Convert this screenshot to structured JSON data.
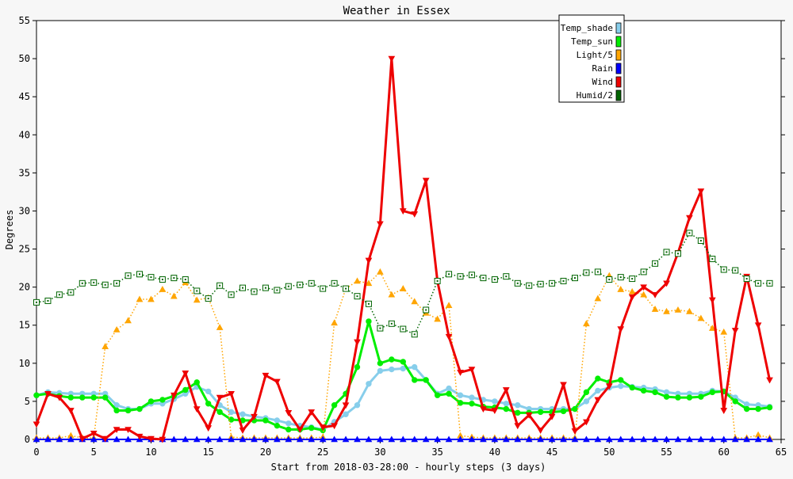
{
  "chart_data": {
    "type": "line",
    "title": "Weather in Essex",
    "xlabel": "Start from 2018-03-28:00 - hourly steps (3 days)",
    "ylabel": "Degrees",
    "xlim": [
      0,
      65
    ],
    "ylim": [
      0,
      55
    ],
    "xticks": [
      0,
      5,
      10,
      15,
      20,
      25,
      30,
      35,
      40,
      45,
      50,
      55,
      60,
      65
    ],
    "yticks": [
      0,
      5,
      10,
      15,
      20,
      25,
      30,
      35,
      40,
      45,
      50,
      55
    ],
    "legend_position": "top-right",
    "grid": false,
    "series": [
      {
        "name": "Temp_shade",
        "color": "#87ceeb",
        "marker": "circle",
        "line": "solid",
        "values": [
          5.8,
          6.2,
          6.1,
          6.0,
          6.0,
          6.0,
          6.0,
          4.5,
          4.0,
          4.0,
          4.7,
          4.7,
          5.3,
          6.0,
          6.9,
          6.3,
          4.5,
          3.6,
          3.3,
          3.0,
          2.8,
          2.5,
          2.1,
          1.8,
          1.6,
          1.3,
          2.3,
          3.3,
          4.5,
          7.3,
          9.0,
          9.2,
          9.3,
          9.5,
          7.8,
          6.0,
          6.7,
          5.8,
          5.5,
          5.2,
          5.0,
          4.7,
          4.5,
          4.0,
          4.0,
          4.0,
          4.0,
          4.0,
          5.0,
          6.4,
          6.8,
          7.0,
          6.9,
          6.8,
          6.6,
          6.2,
          6.0,
          6.0,
          6.0,
          6.4,
          6.3,
          5.5,
          4.6,
          4.5,
          4.3
        ]
      },
      {
        "name": "Temp_sun",
        "color": "#00ee00",
        "marker": "circle",
        "line": "solid",
        "values": [
          5.8,
          6.0,
          5.7,
          5.5,
          5.5,
          5.5,
          5.5,
          3.8,
          3.8,
          4.0,
          5.0,
          5.2,
          5.7,
          6.5,
          7.5,
          4.7,
          3.6,
          2.6,
          2.5,
          2.5,
          2.5,
          1.8,
          1.3,
          1.3,
          1.5,
          1.2,
          4.5,
          6.0,
          9.5,
          15.5,
          10.0,
          10.5,
          10.2,
          7.8,
          7.8,
          5.8,
          6.0,
          4.8,
          4.7,
          4.3,
          4.2,
          4.0,
          3.5,
          3.5,
          3.6,
          3.6,
          3.7,
          4.0,
          6.2,
          8.0,
          7.5,
          7.8,
          6.8,
          6.4,
          6.2,
          5.6,
          5.5,
          5.5,
          5.6,
          6.2,
          6.3,
          5.0,
          4.0,
          4.0,
          4.2
        ]
      },
      {
        "name": "Light/5",
        "color": "#ffa500",
        "marker": "triangle-up",
        "line": "dotted",
        "values": [
          0.2,
          0.2,
          0.2,
          0.5,
          0.2,
          0.2,
          12.2,
          14.4,
          15.6,
          18.4,
          18.4,
          19.7,
          18.8,
          20.6,
          18.3,
          18.6,
          14.7,
          0.3,
          0.2,
          0.2,
          0.2,
          0.2,
          0.2,
          0.2,
          0.2,
          0.3,
          15.3,
          19.8,
          20.8,
          20.5,
          22.0,
          19.0,
          19.8,
          18.1,
          16.6,
          15.8,
          17.6,
          0.5,
          0.3,
          0.2,
          0.2,
          0.2,
          0.2,
          0.2,
          0.2,
          0.2,
          0.2,
          0.2,
          15.2,
          18.5,
          21.5,
          19.7,
          19.4,
          19.0,
          17.1,
          16.8,
          17.0,
          16.8,
          15.9,
          14.6,
          14.1,
          0.2,
          0.2,
          0.6,
          0.2
        ]
      },
      {
        "name": "Rain",
        "color": "#0000ff",
        "marker": "triangle-up",
        "line": "solid",
        "values": [
          0,
          0,
          0,
          0,
          0,
          0,
          0,
          0,
          0,
          0,
          0,
          0,
          0,
          0,
          0,
          0,
          0,
          0,
          0,
          0,
          0,
          0,
          0,
          0,
          0,
          0,
          0,
          0,
          0,
          0,
          0,
          0,
          0,
          0,
          0,
          0,
          0,
          0,
          0,
          0,
          0,
          0,
          0,
          0,
          0,
          0,
          0,
          0,
          0,
          0,
          0,
          0,
          0,
          0,
          0,
          0,
          0,
          0,
          0,
          0,
          0,
          0,
          0,
          0,
          0
        ]
      },
      {
        "name": "Wind",
        "color": "#ee0000",
        "marker": "triangle-down",
        "line": "solid",
        "values": [
          2.0,
          6.0,
          5.5,
          3.8,
          0.1,
          0.8,
          0.1,
          1.3,
          1.3,
          0.4,
          0.1,
          0.0,
          5.8,
          8.7,
          4.0,
          1.5,
          5.5,
          6.0,
          1.2,
          3.0,
          8.4,
          7.6,
          3.5,
          1.3,
          3.6,
          1.6,
          1.8,
          4.5,
          12.8,
          23.5,
          28.3,
          50.0,
          30.0,
          29.6,
          34.0,
          20.8,
          13.5,
          8.8,
          9.2,
          4.0,
          3.8,
          6.5,
          1.8,
          3.2,
          1.2,
          3.0,
          7.2,
          1.1,
          2.3,
          5.2,
          7.0,
          14.5,
          18.7,
          20.0,
          19.0,
          20.5,
          24.5,
          29.1,
          32.6,
          18.3,
          3.8,
          14.3,
          21.4,
          15.0,
          7.8
        ]
      },
      {
        "name": "Humid/2",
        "color": "#006400",
        "marker": "square",
        "line": "dotted",
        "values": [
          18.0,
          18.2,
          19.0,
          19.3,
          20.5,
          20.6,
          20.3,
          20.5,
          21.5,
          21.7,
          21.3,
          21.0,
          21.2,
          21.0,
          19.5,
          18.5,
          20.2,
          19.0,
          19.9,
          19.4,
          19.9,
          19.6,
          20.1,
          20.3,
          20.5,
          19.8,
          20.5,
          19.8,
          18.8,
          17.8,
          14.6,
          15.2,
          14.5,
          13.8,
          17.0,
          20.8,
          21.7,
          21.4,
          21.6,
          21.2,
          21.0,
          21.4,
          20.5,
          20.2,
          20.4,
          20.5,
          20.8,
          21.2,
          21.9,
          22.0,
          21.0,
          21.3,
          21.1,
          22.0,
          23.1,
          24.6,
          24.4,
          27.1,
          26.1,
          23.7,
          22.3,
          22.2,
          21.1,
          20.5,
          20.5
        ]
      }
    ]
  }
}
